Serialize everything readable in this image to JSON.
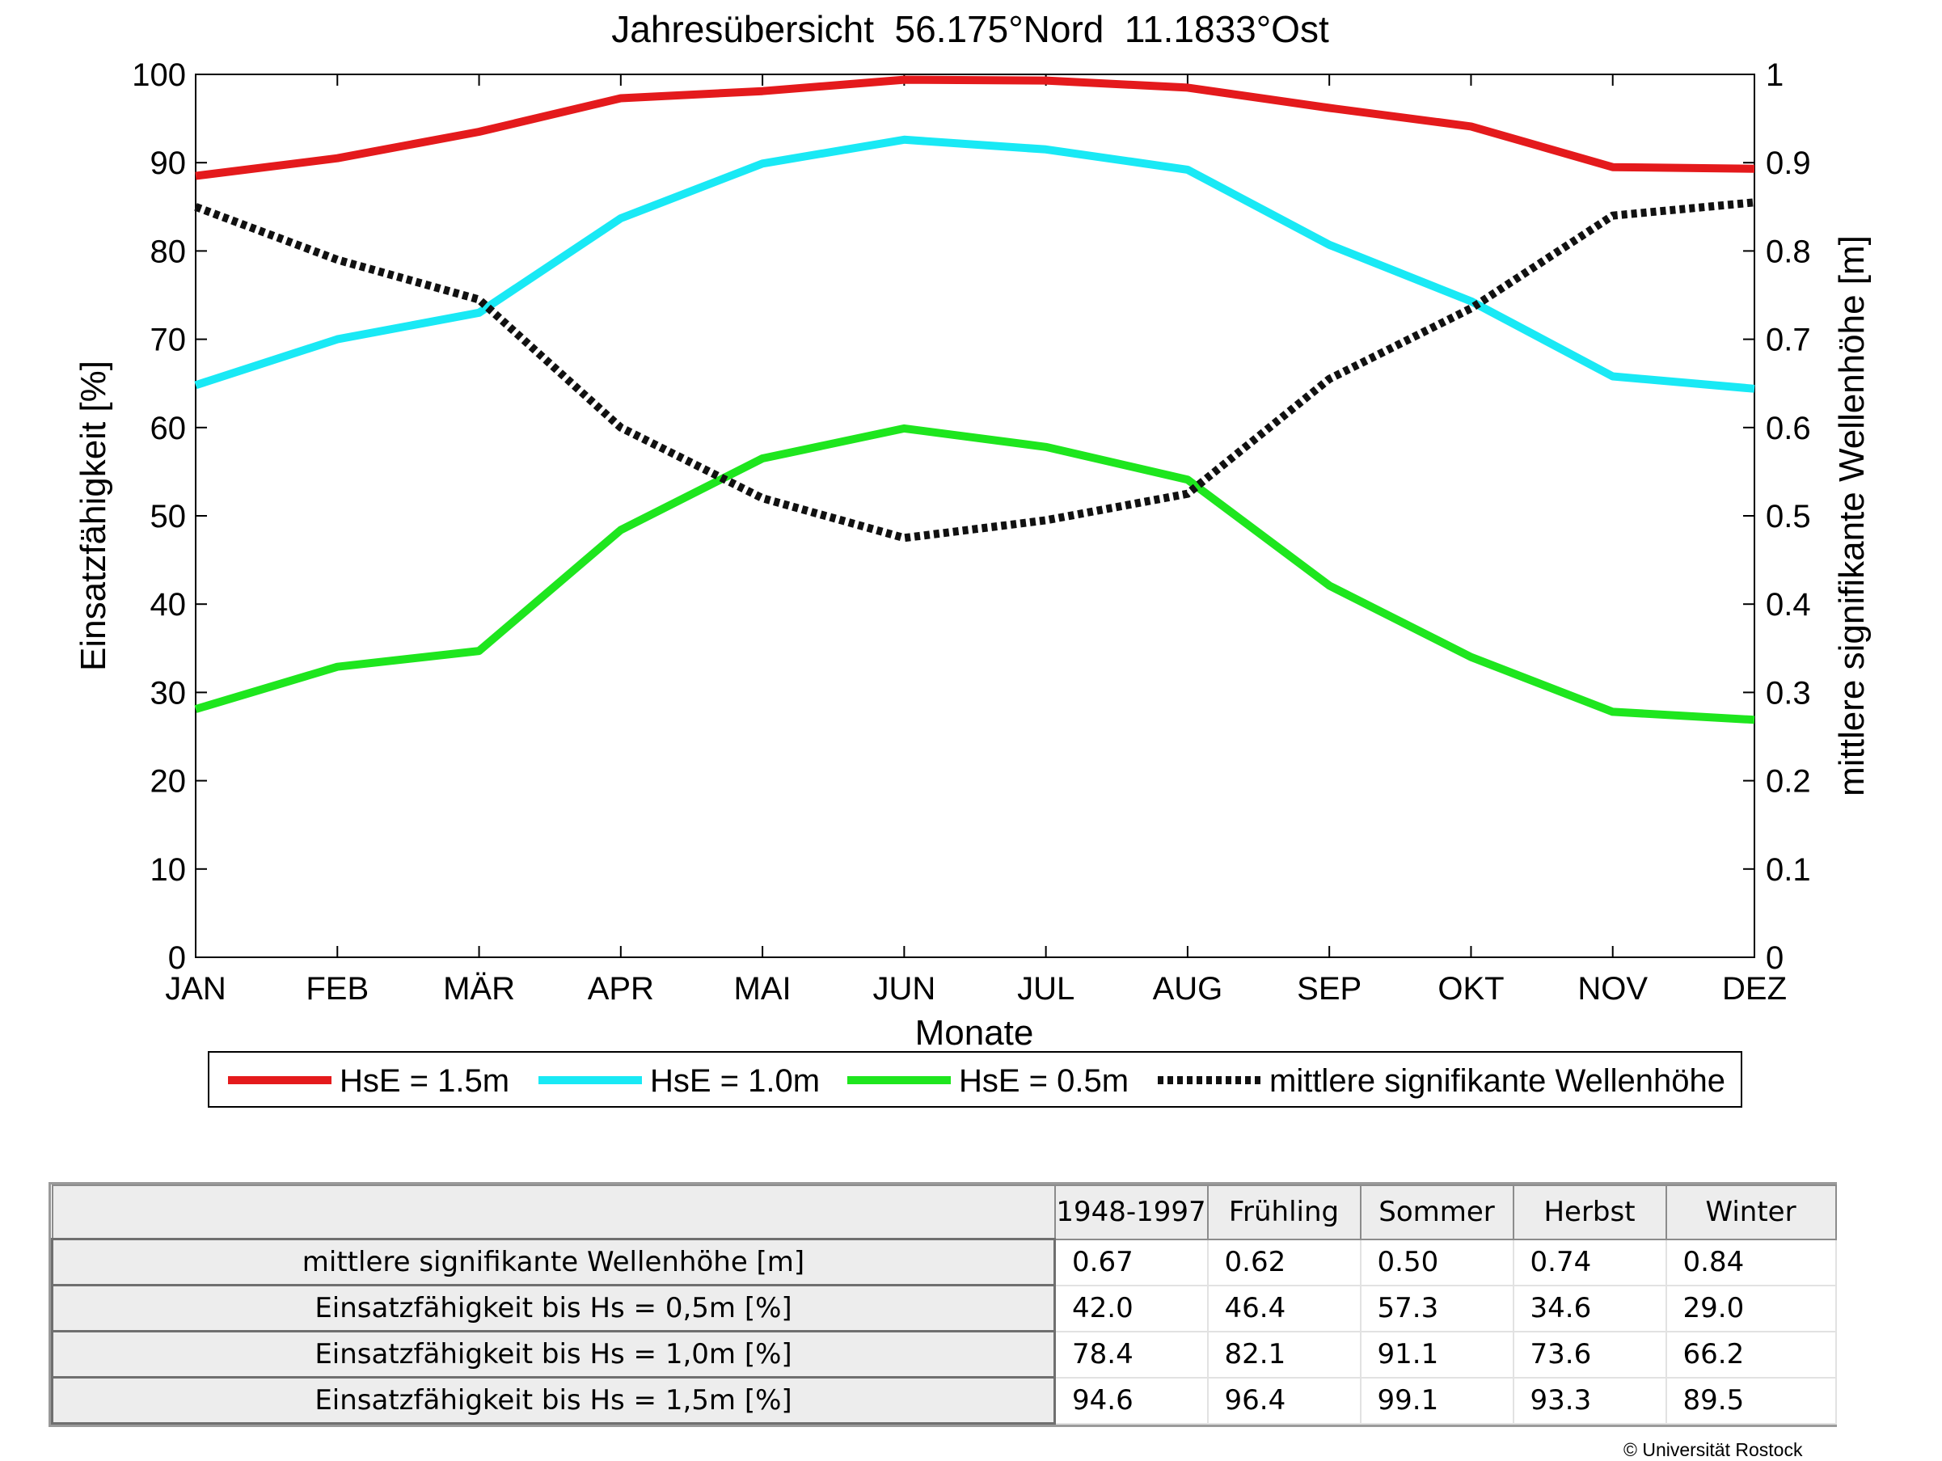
{
  "chart_data": {
    "type": "line",
    "title": "Jahresübersicht  56.175°Nord  11.1833°Ost",
    "xlabel": "Monate",
    "ylabel": "Einsatzfähigkeit [%]",
    "y2label": "mittlere signifikante Wellenhöhe [m]",
    "categories": [
      "JAN",
      "FEB",
      "MÄR",
      "APR",
      "MAI",
      "JUN",
      "JUL",
      "AUG",
      "SEP",
      "OKT",
      "NOV",
      "DEZ"
    ],
    "ylim": [
      0,
      100
    ],
    "y2lim": [
      0,
      1
    ],
    "yticks": [
      "0",
      "10",
      "20",
      "30",
      "40",
      "50",
      "60",
      "70",
      "80",
      "90",
      "100"
    ],
    "y2ticks": [
      "0",
      "0.1",
      "0.2",
      "0.3",
      "0.4",
      "0.5",
      "0.6",
      "0.7",
      "0.8",
      "0.9",
      "1"
    ],
    "grid": false,
    "legend_position": "bottom",
    "series": [
      {
        "name": "HsE = 1.5m",
        "color": "#e41a1c",
        "axis": "left",
        "style": "solid",
        "values": [
          88.5,
          90.5,
          93.5,
          97.3,
          98.1,
          99.4,
          99.3,
          98.5,
          96.2,
          94.1,
          89.5,
          89.3
        ]
      },
      {
        "name": "HsE = 1.0m",
        "color": "#19e9f5",
        "axis": "left",
        "style": "solid",
        "values": [
          64.8,
          70.0,
          73.0,
          83.7,
          89.9,
          92.6,
          91.5,
          89.2,
          80.7,
          74.3,
          65.8,
          64.4
        ]
      },
      {
        "name": "HsE = 0.5m",
        "color": "#1ee61e",
        "axis": "left",
        "style": "solid",
        "values": [
          28.1,
          32.9,
          34.7,
          48.4,
          56.5,
          59.9,
          57.8,
          54.1,
          42.1,
          34.0,
          27.8,
          26.9
        ]
      },
      {
        "name": "mittlere signifikante Wellenhöhe",
        "color": "#111111",
        "axis": "right",
        "style": "dotted",
        "values": [
          0.85,
          0.79,
          0.745,
          0.6,
          0.52,
          0.475,
          0.495,
          0.525,
          0.655,
          0.735,
          0.84,
          0.855
        ]
      }
    ]
  },
  "table": {
    "columns": [
      "1948-1997",
      "Frühling",
      "Sommer",
      "Herbst",
      "Winter"
    ],
    "rows": [
      {
        "label": "mittlere signifikante Wellenhöhe [m]",
        "values": [
          "0.67",
          "0.62",
          "0.50",
          "0.74",
          "0.84"
        ]
      },
      {
        "label": "Einsatzfähigkeit bis Hs = 0,5m [%]",
        "values": [
          "42.0",
          "46.4",
          "57.3",
          "34.6",
          "29.0"
        ]
      },
      {
        "label": "Einsatzfähigkeit bis Hs = 1,0m [%]",
        "values": [
          "78.4",
          "82.1",
          "91.1",
          "73.6",
          "66.2"
        ]
      },
      {
        "label": "Einsatzfähigkeit bis Hs = 1,5m [%]",
        "values": [
          "94.6",
          "96.4",
          "99.1",
          "93.3",
          "89.5"
        ]
      }
    ]
  },
  "footer": {
    "copyright": "© Universität Rostock"
  }
}
